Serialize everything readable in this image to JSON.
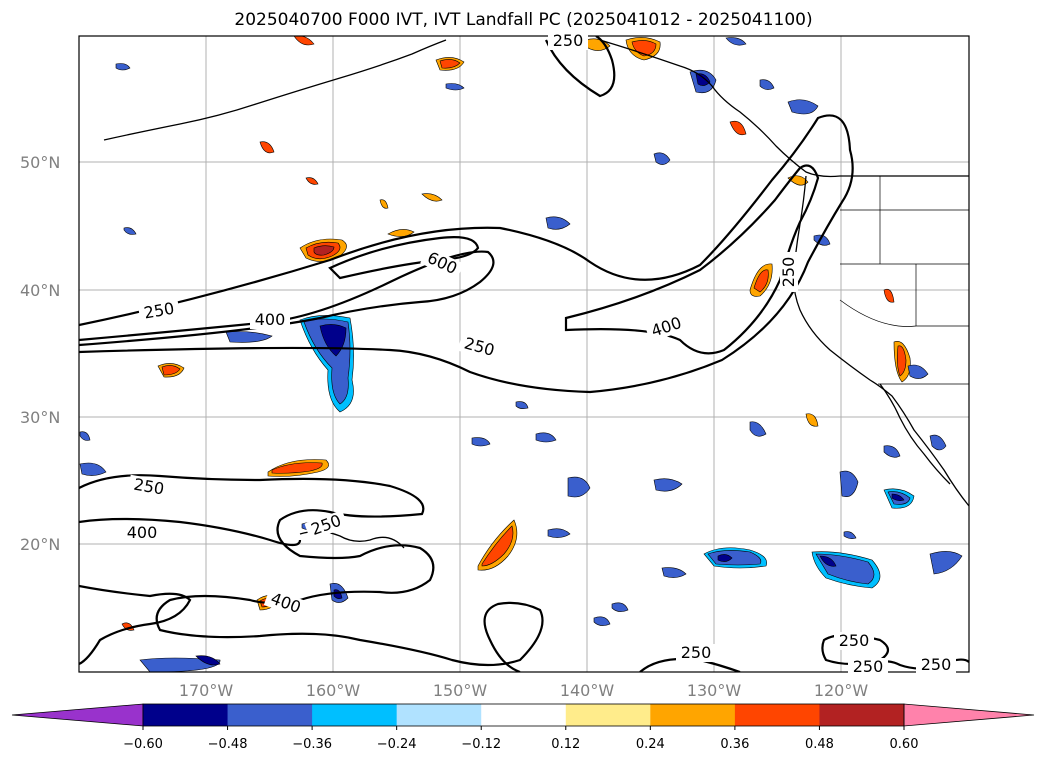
{
  "map": {
    "title": "2025040700 F000 IVT, IVT Landfall PC (2025041012 - 2025041100)",
    "lat_labels": [
      "50°N",
      "40°N",
      "30°N",
      "20°N"
    ],
    "lon_labels": [
      "170°W",
      "160°W",
      "150°W",
      "140°W",
      "130°W",
      "120°W"
    ],
    "contour_levels": [
      "250",
      "400",
      "600"
    ],
    "contour_labels": [
      "250",
      "250",
      "250",
      "250",
      "250",
      "250",
      "250",
      "250",
      "250",
      "400",
      "400",
      "400",
      "400",
      "600",
      "250"
    ],
    "colorbar": {
      "tick_labels": [
        "−0.60",
        "−0.48",
        "−0.36",
        "−0.24",
        "−0.12",
        "0.12",
        "0.24",
        "0.36",
        "0.48",
        "0.60"
      ],
      "colors": [
        "#9932CC",
        "#00008B",
        "#3A5FCD",
        "#00BFFF",
        "#B0E2FF",
        "#FFFFFF",
        "#FFEC8B",
        "#FFA500",
        "#FF4500",
        "#B22222",
        "#FF82AB"
      ]
    }
  }
}
